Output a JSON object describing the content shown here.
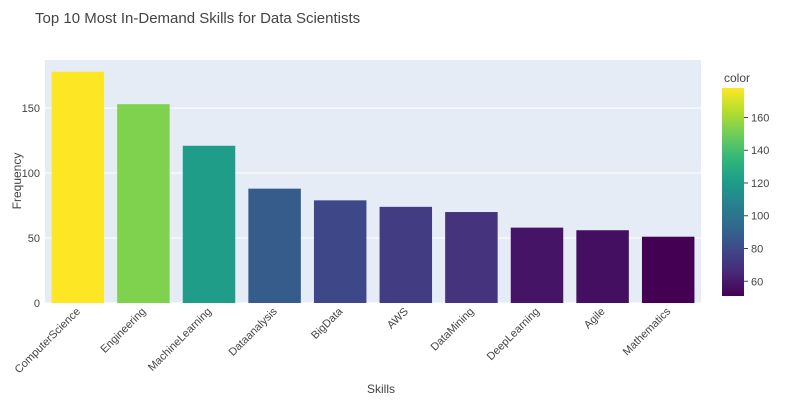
{
  "chart_data": {
    "type": "bar",
    "title": "Top 10 Most In-Demand Skills for Data Scientists",
    "xlabel": "Skills",
    "ylabel": "Frequency",
    "categories": [
      "ComputerScience",
      "Engineering",
      "MachineLearning",
      "Dataanalysis",
      "BigData",
      "AWS",
      "DataMining",
      "DeepLearning",
      "Agile",
      "Mathematics"
    ],
    "values": [
      178,
      153,
      121,
      88,
      79,
      74,
      70,
      58,
      56,
      51
    ],
    "ylim": [
      0,
      187
    ],
    "yticks": [
      0,
      50,
      100,
      150
    ],
    "grid": true,
    "colorscale": "Viridis",
    "colorbar": {
      "title": "color",
      "range": [
        51,
        178
      ],
      "ticks": [
        60,
        80,
        100,
        120,
        140,
        160
      ]
    },
    "colors": {
      "plot_bg": "#e5ecf6",
      "grid": "#ffffff",
      "text": "#444444"
    }
  }
}
